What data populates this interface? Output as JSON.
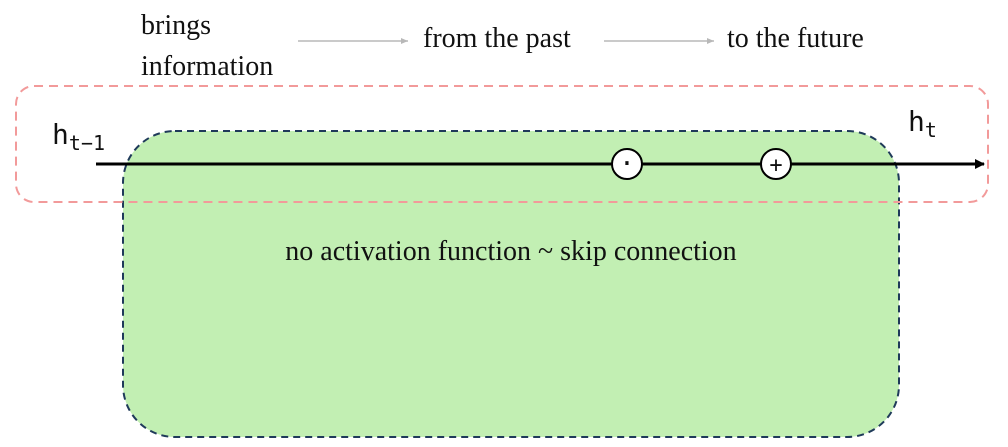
{
  "header": {
    "line1": "brings",
    "line2": "information",
    "from": "from the past",
    "to": "to the future"
  },
  "hidden_state": {
    "prev_base": "h",
    "prev_sub": "t−1",
    "curr_base": "h",
    "curr_sub": "t"
  },
  "operators": {
    "multiply_symbol": "·",
    "add_symbol": "+"
  },
  "body_label": "no activation function ~ skip connection",
  "colors": {
    "green_fill": "#c2efb3",
    "green_border": "#1f3a5a",
    "pink_border": "#f29a9a",
    "gray_arrow": "#b8b8b8",
    "main_line": "#000000"
  }
}
